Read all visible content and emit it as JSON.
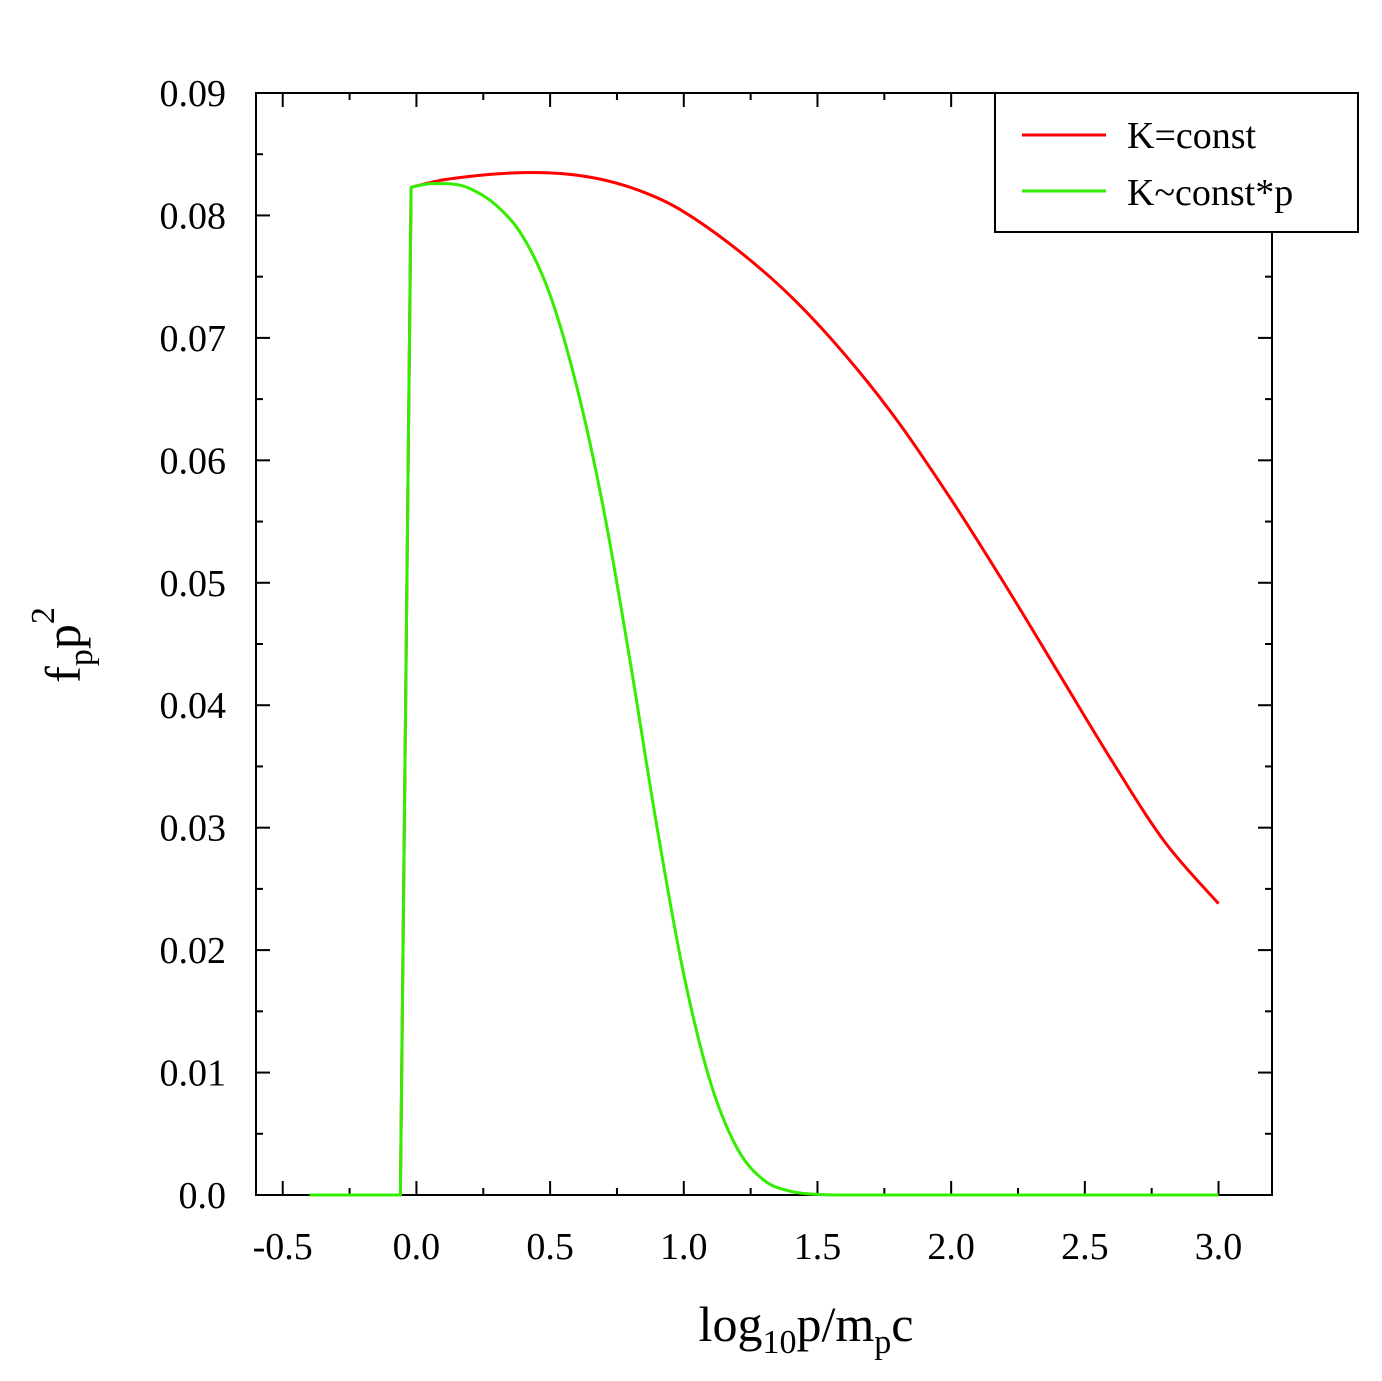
{
  "chart_data": {
    "type": "line",
    "xlabel": {
      "base": "log",
      "sub1": "10",
      "mid": "p/m",
      "sub2": "p",
      "end": "c"
    },
    "ylabel": {
      "base": "f",
      "sub": "p",
      "mid": "p",
      "sup": "2"
    },
    "xlim": [
      -0.6,
      3.2
    ],
    "ylim": [
      0,
      0.09
    ],
    "x_ticks": [
      -0.5,
      0.0,
      0.5,
      1.0,
      1.5,
      2.0,
      2.5,
      3.0
    ],
    "x_tick_labels": [
      "-0.5",
      "0.0",
      "0.5",
      "1.0",
      "1.5",
      "2.0",
      "2.5",
      "3.0"
    ],
    "y_ticks": [
      0,
      0.01,
      0.02,
      0.03,
      0.04,
      0.05,
      0.06,
      0.07,
      0.08,
      0.09
    ],
    "y_tick_labels": [
      "0.0",
      "0.01",
      "0.02",
      "0.03",
      "0.04",
      "0.05",
      "0.06",
      "0.07",
      "0.08",
      "0.09"
    ],
    "legend_position": "top-right",
    "grid": false,
    "series": [
      {
        "name": "K=const",
        "color": "#ff0000",
        "x": [
          -0.4,
          -0.06,
          -0.02,
          0.1,
          0.25,
          0.4,
          0.55,
          0.7,
          0.85,
          1.0,
          1.2,
          1.4,
          1.6,
          1.8,
          2.0,
          2.2,
          2.4,
          2.6,
          2.8,
          3.0
        ],
        "y": [
          0,
          0,
          0.0823,
          0.0829,
          0.0833,
          0.0835,
          0.0834,
          0.0829,
          0.0819,
          0.0803,
          0.0772,
          0.0734,
          0.0687,
          0.0632,
          0.0568,
          0.0499,
          0.0427,
          0.0355,
          0.0288,
          0.0238
        ]
      },
      {
        "name": "K~const*p",
        "color": "#33ee00",
        "x": [
          -0.4,
          -0.06,
          -0.02,
          0.05,
          0.12,
          0.2,
          0.3,
          0.4,
          0.5,
          0.6,
          0.7,
          0.8,
          0.9,
          1.0,
          1.1,
          1.2,
          1.3,
          1.4,
          1.5,
          1.6,
          1.8,
          2.0,
          2.5,
          3.0
        ],
        "y": [
          0,
          0,
          0.0823,
          0.0826,
          0.0826,
          0.0822,
          0.0808,
          0.0782,
          0.0735,
          0.066,
          0.056,
          0.0435,
          0.03,
          0.018,
          0.0092,
          0.0038,
          0.0012,
          0.0003,
          5e-05,
          0,
          0,
          0,
          0,
          0
        ]
      }
    ]
  }
}
